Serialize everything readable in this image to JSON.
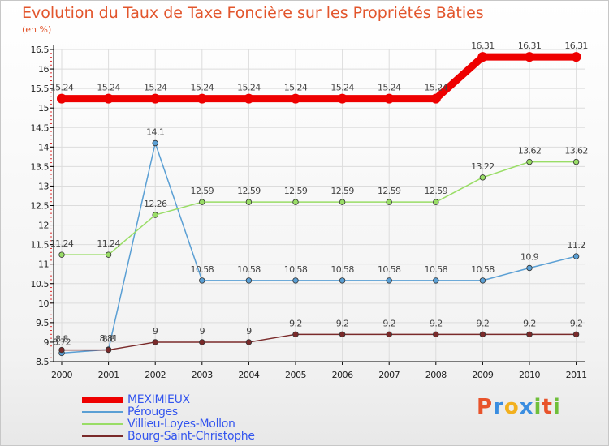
{
  "chart_data": {
    "type": "line",
    "title": "Evolution du Taux de Taxe Foncière sur les Propriétés Bâties",
    "ylabel": "(en %)",
    "xlabel": "",
    "ylim": [
      8.5,
      16.5
    ],
    "yticks": [
      8.5,
      9,
      9.5,
      10,
      10.5,
      11,
      11.5,
      12,
      12.5,
      13,
      13.5,
      14,
      14.5,
      15,
      15.5,
      16,
      16.5
    ],
    "categories": [
      "2000",
      "2001",
      "2002",
      "2003",
      "2004",
      "2005",
      "2006",
      "2007",
      "2008",
      "2009",
      "2010",
      "2011"
    ],
    "series": [
      {
        "name": "MEXIMIEUX",
        "color": "#ee0000",
        "values": [
          15.24,
          15.24,
          15.24,
          15.24,
          15.24,
          15.24,
          15.24,
          15.24,
          15.24,
          16.31,
          16.31,
          16.31
        ]
      },
      {
        "name": "Pérouges",
        "color": "#5a9fd4",
        "values": [
          8.72,
          8.81,
          14.1,
          10.58,
          10.58,
          10.58,
          10.58,
          10.58,
          10.58,
          10.58,
          10.9,
          11.2
        ]
      },
      {
        "name": "Villieu-Loyes-Mollon",
        "color": "#99dd66",
        "values": [
          11.24,
          11.24,
          12.26,
          12.59,
          12.59,
          12.59,
          12.59,
          12.59,
          12.59,
          13.22,
          13.62,
          13.62
        ]
      },
      {
        "name": "Bourg-Saint-Christophe",
        "color": "#7a2a2a",
        "values": [
          8.8,
          8.8,
          9,
          9,
          9,
          9.2,
          9.2,
          9.2,
          9.2,
          9.2,
          9.2,
          9.2
        ]
      }
    ],
    "grid": true
  },
  "logo": {
    "text": "Proxiti",
    "colors": [
      "#e8532b",
      "#3a8de0",
      "#f2b01e",
      "#3a8de0",
      "#6fbf3a",
      "#e8532b",
      "#6fbf3a"
    ]
  }
}
